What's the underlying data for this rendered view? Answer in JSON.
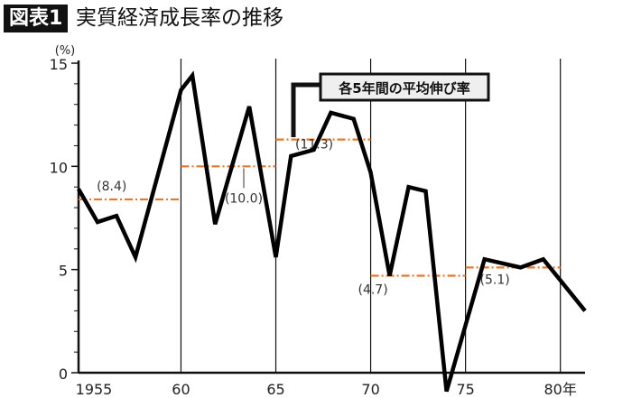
{
  "header": {
    "badge": "図表1",
    "title": "実質経済成長率の推移"
  },
  "chart_data": {
    "type": "line",
    "title": "実質経済成長率の推移",
    "ylabel": "(%)",
    "ylim": [
      0,
      15
    ],
    "xlim": [
      1954.6,
      1981.3
    ],
    "yticks": [
      0,
      5,
      10,
      15
    ],
    "xticks": [
      {
        "v": 1955,
        "label": "1955"
      },
      {
        "v": 1960,
        "label": "60"
      },
      {
        "v": 1965,
        "label": "65"
      },
      {
        "v": 1970,
        "label": "70"
      },
      {
        "v": 1975,
        "label": "75"
      },
      {
        "v": 1980,
        "label": "80年"
      }
    ],
    "series": [
      {
        "x": [
          1954.6,
          1955.6,
          1956.6,
          1957.6,
          1960.0,
          1960.6,
          1961.8,
          1963.6,
          1965.0,
          1965.8,
          1967.0,
          1967.9,
          1969.1,
          1970.0,
          1971.0,
          1972.0,
          1972.9,
          1974.0,
          1976.0,
          1977.9,
          1979.1,
          1981.3
        ],
        "y": [
          8.9,
          7.3,
          7.6,
          5.6,
          13.7,
          14.4,
          7.2,
          12.9,
          5.6,
          10.5,
          10.8,
          12.6,
          12.3,
          9.7,
          4.7,
          9.0,
          8.8,
          -0.9,
          5.5,
          5.1,
          5.5,
          3.0
        ]
      }
    ],
    "averages": [
      {
        "from": 1954.6,
        "to": 1960,
        "value": 8.4,
        "label": "(8.4)"
      },
      {
        "from": 1960,
        "to": 1965,
        "value": 10.0,
        "label": "(10.0)"
      },
      {
        "from": 1965,
        "to": 1970,
        "value": 11.3,
        "label": "(11.3)"
      },
      {
        "from": 1970,
        "to": 1975,
        "value": 4.7,
        "label": "(4.7)"
      },
      {
        "from": 1975,
        "to": 1980,
        "value": 5.1,
        "label": "(5.1)"
      }
    ],
    "annotation": "各5年間の平均伸び率",
    "grid": "vertical lines at 60,65,70,75,80",
    "colors": {
      "line": "#000000",
      "average": "#e8782a"
    }
  }
}
